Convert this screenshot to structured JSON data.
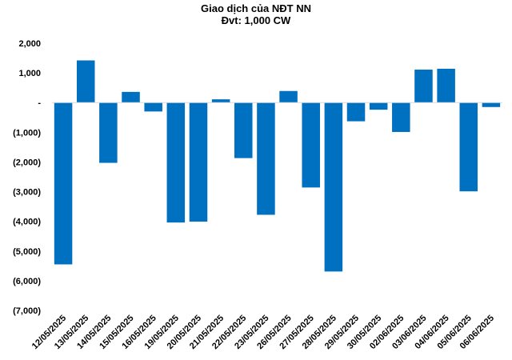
{
  "chart_data": {
    "type": "bar",
    "title": "Giao dịch của NĐT NN",
    "subtitle": "Đvt: 1,000 CW",
    "categories": [
      "12/05/2025",
      "13/05/2025",
      "14/05/2025",
      "15/05/2025",
      "16/05/2025",
      "19/05/2025",
      "20/05/2025",
      "21/05/2025",
      "22/05/2025",
      "23/05/2025",
      "26/05/2025",
      "27/05/2025",
      "28/05/2025",
      "29/05/2025",
      "30/05/2025",
      "02/06/2025",
      "03/06/2025",
      "04/06/2025",
      "05/06/2025",
      "06/06/2025"
    ],
    "values": [
      -5450,
      1420,
      -2030,
      360,
      -300,
      -4040,
      -4010,
      110,
      -1870,
      -3780,
      390,
      -2860,
      -5690,
      -630,
      -240,
      -990,
      1110,
      1140,
      -2990,
      -150
    ],
    "ylim": [
      -7000,
      2000
    ],
    "yticks": [
      2000,
      1000,
      0,
      -1000,
      -2000,
      -3000,
      -4000,
      -5000,
      -6000,
      -7000
    ],
    "ytick_labels": [
      "2,000",
      "1,000",
      "-",
      "(1,000)",
      "(2,000)",
      "(3,000)",
      "(4,000)",
      "(5,000)",
      "(6,000)",
      "(7,000)"
    ],
    "grid": false,
    "legend": "none",
    "bar_color": "#0070c0"
  }
}
